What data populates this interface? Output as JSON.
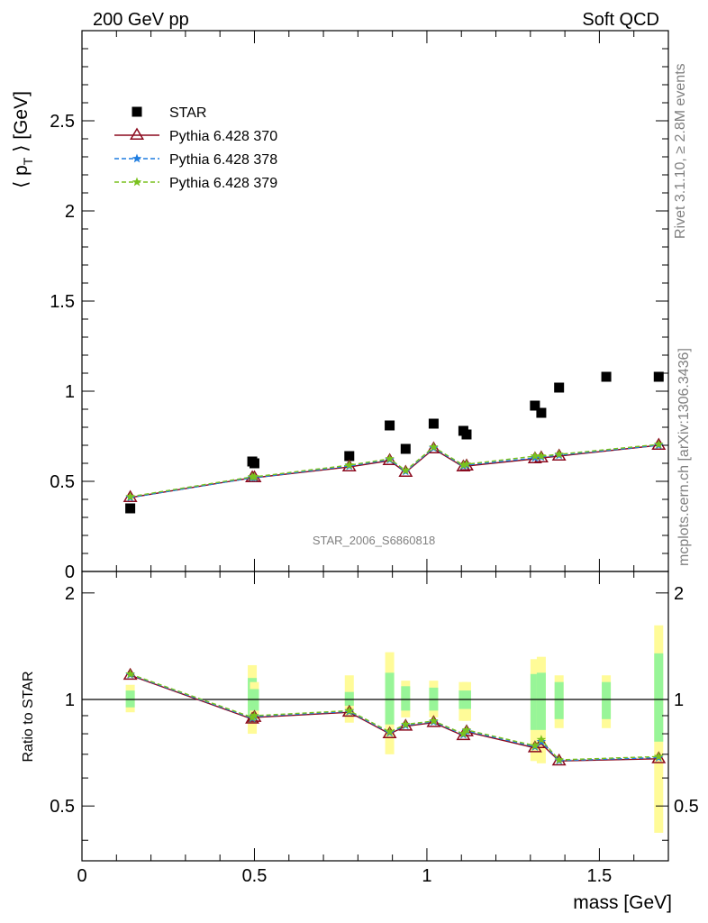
{
  "header": {
    "left": "200 GeV pp",
    "right": "Soft QCD"
  },
  "side_labels": {
    "rivet": "Rivet 3.1.10, ≥ 2.8M events",
    "mcplots": "mcplots.cern.ch [arXiv:1306.3436]"
  },
  "watermark": "STAR_2006_S6860818",
  "chart_data": [
    {
      "type": "scatter",
      "panel": "main",
      "ylabel_prefix": "⟨ p",
      "ylabel_sub": "T",
      "ylabel_suffix": " ⟩ [GeV]",
      "xlim": [
        0,
        1.7
      ],
      "ylim": [
        0,
        3.0
      ],
      "y_ticks": [
        0,
        0.5,
        1,
        1.5,
        2,
        2.5
      ],
      "y_tick_labels": [
        "0",
        "0.5",
        "1",
        "1.5",
        "2",
        "2.5"
      ],
      "legend_position": "top-left",
      "series": [
        {
          "name": "STAR",
          "style": "square-marker",
          "color": "#000000",
          "x": [
            0.14,
            0.4937,
            0.5,
            0.775,
            0.892,
            0.9383,
            1.0195,
            1.1057,
            1.115,
            1.3132,
            1.3316,
            1.3832,
            1.52,
            1.672
          ],
          "y": [
            0.35,
            0.61,
            0.6,
            0.64,
            0.81,
            0.68,
            0.82,
            0.78,
            0.76,
            0.92,
            0.88,
            1.02,
            1.08,
            1.08
          ]
        },
        {
          "name": "Pythia 6.428 370",
          "style": "solid-line-triangle",
          "color": "#8b0a1e",
          "x": [
            0.14,
            0.4937,
            0.5,
            0.775,
            0.892,
            0.9383,
            1.0195,
            1.1057,
            1.115,
            1.3132,
            1.3316,
            1.3832,
            1.672
          ],
          "y": [
            0.41,
            0.52,
            0.52,
            0.58,
            0.615,
            0.55,
            0.68,
            0.58,
            0.585,
            0.625,
            0.63,
            0.64,
            0.7
          ]
        },
        {
          "name": "Pythia 6.428 378",
          "style": "dashed-line-star",
          "color": "#1f7de0",
          "x": [
            0.14,
            0.4937,
            0.5,
            0.775,
            0.892,
            0.9383,
            1.0195,
            1.1057,
            1.115,
            1.3132,
            1.3316,
            1.3832,
            1.672
          ],
          "y": [
            0.41,
            0.52,
            0.52,
            0.585,
            0.62,
            0.555,
            0.685,
            0.585,
            0.59,
            0.63,
            0.635,
            0.645,
            0.7
          ]
        },
        {
          "name": "Pythia 6.428 379",
          "style": "dashed-line-star",
          "color": "#7ac11e",
          "x": [
            0.14,
            0.4937,
            0.5,
            0.775,
            0.892,
            0.9383,
            1.0195,
            1.1057,
            1.115,
            1.3132,
            1.3316,
            1.3832,
            1.672
          ],
          "y": [
            0.415,
            0.525,
            0.525,
            0.59,
            0.625,
            0.56,
            0.69,
            0.59,
            0.595,
            0.64,
            0.64,
            0.65,
            0.705
          ]
        }
      ]
    },
    {
      "type": "line",
      "panel": "ratio",
      "ylabel": "Ratio to STAR",
      "xlabel": "mass [GeV]",
      "xlim": [
        0,
        1.7
      ],
      "ylim": [
        0.35,
        2.3
      ],
      "log_y": true,
      "x_ticks": [
        0,
        0.5,
        1,
        1.5
      ],
      "x_tick_labels": [
        "0",
        "0.5",
        "1",
        "1.5"
      ],
      "y_ticks": [
        0.5,
        1,
        2
      ],
      "y_tick_labels": [
        "0.5",
        "1",
        "2"
      ],
      "reference_line": 1,
      "uncertainty_bands": {
        "x": [
          0.14,
          0.4937,
          0.5,
          0.775,
          0.892,
          0.9383,
          1.0195,
          1.1057,
          1.115,
          1.3132,
          1.3316,
          1.3832,
          1.52,
          1.672
        ],
        "stat_low": [
          0.95,
          0.86,
          0.93,
          0.96,
          0.85,
          0.93,
          0.93,
          0.94,
          0.94,
          0.82,
          0.82,
          0.88,
          0.88,
          0.76
        ],
        "stat_high": [
          1.06,
          1.15,
          1.07,
          1.05,
          1.19,
          1.09,
          1.08,
          1.06,
          1.06,
          1.18,
          1.19,
          1.12,
          1.12,
          1.35
        ],
        "sys_low": [
          0.92,
          0.8,
          0.88,
          0.86,
          0.7,
          0.89,
          0.89,
          0.87,
          0.87,
          0.67,
          0.66,
          0.83,
          0.83,
          0.42
        ],
        "sys_high": [
          1.1,
          1.25,
          1.12,
          1.17,
          1.36,
          1.13,
          1.13,
          1.12,
          1.12,
          1.3,
          1.32,
          1.17,
          1.17,
          1.62
        ],
        "stat_color": "#98f598",
        "sys_color": "#fffb98"
      },
      "series": [
        {
          "name": "Pythia 6.428 370",
          "color": "#8b0a1e",
          "x": [
            0.14,
            0.4937,
            0.5,
            0.775,
            0.892,
            0.9383,
            1.0195,
            1.1057,
            1.115,
            1.3132,
            1.3316,
            1.3832,
            1.672
          ],
          "y": [
            1.17,
            0.88,
            0.89,
            0.92,
            0.8,
            0.84,
            0.86,
            0.79,
            0.81,
            0.73,
            0.75,
            0.67,
            0.68
          ]
        },
        {
          "name": "Pythia 6.428 378",
          "color": "#1f7de0",
          "x": [
            0.14,
            0.4937,
            0.5,
            0.775,
            0.892,
            0.9383,
            1.0195,
            1.1057,
            1.115,
            1.3132,
            1.3316,
            1.3832,
            1.672
          ],
          "y": [
            1.175,
            0.885,
            0.895,
            0.925,
            0.805,
            0.845,
            0.865,
            0.795,
            0.815,
            0.735,
            0.76,
            0.672,
            0.685
          ]
        },
        {
          "name": "Pythia 6.428 379",
          "color": "#7ac11e",
          "x": [
            0.14,
            0.4937,
            0.5,
            0.775,
            0.892,
            0.9383,
            1.0195,
            1.1057,
            1.115,
            1.3132,
            1.3316,
            1.3832,
            1.672
          ],
          "y": [
            1.18,
            0.89,
            0.9,
            0.93,
            0.81,
            0.85,
            0.87,
            0.8,
            0.82,
            0.74,
            0.77,
            0.675,
            0.69
          ]
        }
      ]
    }
  ]
}
